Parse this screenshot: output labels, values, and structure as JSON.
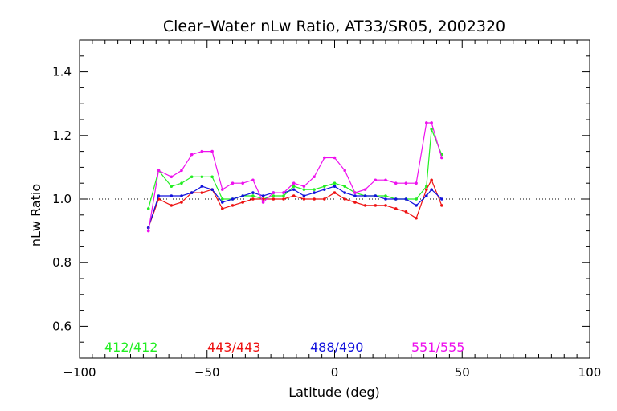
{
  "chart_data": {
    "type": "line",
    "title": "Clear–Water nLw Ratio, AT33/SR05, 2002320",
    "xlabel": "Latitude (deg)",
    "ylabel": "nLw Ratio",
    "xlim": [
      -100,
      100
    ],
    "ylim": [
      0.5,
      1.5
    ],
    "x_ticks": [
      -100,
      -50,
      0,
      50,
      100
    ],
    "x_tick_labels": [
      "−100",
      "−50",
      "0",
      "50",
      "100"
    ],
    "y_ticks": [
      0.6,
      0.8,
      1.0,
      1.2,
      1.4
    ],
    "y_tick_labels": [
      "0.6",
      "0.8",
      "1.0",
      "1.2",
      "1.4"
    ],
    "reference_line": 1.0,
    "grid": false,
    "legend_placement": "bottom inside plot",
    "series": [
      {
        "name": "412/412",
        "color": "#22ee22",
        "x": [
          -73,
          -69,
          -64,
          -60,
          -56,
          -52,
          -48,
          -44,
          -40,
          -36,
          -32,
          -28,
          -24,
          -20,
          -16,
          -12,
          -8,
          -4,
          0,
          4,
          8,
          12,
          16,
          20,
          24,
          28,
          32,
          36,
          38,
          42
        ],
        "y": [
          0.97,
          1.09,
          1.04,
          1.05,
          1.07,
          1.07,
          1.07,
          1.0,
          1.0,
          1.01,
          1.01,
          1.0,
          1.01,
          1.01,
          1.04,
          1.03,
          1.03,
          1.04,
          1.05,
          1.04,
          1.02,
          1.01,
          1.01,
          1.01,
          1.0,
          1.0,
          1.0,
          1.04,
          1.22,
          1.14
        ]
      },
      {
        "name": "443/443",
        "color": "#ee1111",
        "x": [
          -73,
          -69,
          -64,
          -60,
          -56,
          -52,
          -48,
          -44,
          -40,
          -36,
          -32,
          -28,
          -24,
          -20,
          -16,
          -12,
          -8,
          -4,
          0,
          4,
          8,
          12,
          16,
          20,
          24,
          28,
          32,
          36,
          38,
          42
        ],
        "y": [
          0.91,
          1.0,
          0.98,
          0.99,
          1.02,
          1.02,
          1.03,
          0.97,
          0.98,
          0.99,
          1.0,
          1.0,
          1.0,
          1.0,
          1.01,
          1.0,
          1.0,
          1.0,
          1.02,
          1.0,
          0.99,
          0.98,
          0.98,
          0.98,
          0.97,
          0.96,
          0.94,
          1.03,
          1.06,
          0.98
        ]
      },
      {
        "name": "488/490",
        "color": "#1111dd",
        "x": [
          -73,
          -69,
          -64,
          -60,
          -56,
          -52,
          -48,
          -44,
          -40,
          -36,
          -32,
          -28,
          -24,
          -20,
          -16,
          -12,
          -8,
          -4,
          0,
          4,
          8,
          12,
          16,
          20,
          24,
          28,
          32,
          36,
          38,
          42
        ],
        "y": [
          0.91,
          1.01,
          1.01,
          1.01,
          1.02,
          1.04,
          1.03,
          0.99,
          1.0,
          1.01,
          1.02,
          1.01,
          1.02,
          1.02,
          1.03,
          1.01,
          1.02,
          1.03,
          1.04,
          1.02,
          1.01,
          1.01,
          1.01,
          1.0,
          1.0,
          1.0,
          0.98,
          1.01,
          1.03,
          1.0
        ]
      },
      {
        "name": "551/555",
        "color": "#ee11ee",
        "x": [
          -73,
          -69,
          -64,
          -60,
          -56,
          -52,
          -48,
          -44,
          -40,
          -36,
          -32,
          -28,
          -24,
          -20,
          -16,
          -12,
          -8,
          -4,
          0,
          4,
          8,
          12,
          16,
          20,
          24,
          28,
          32,
          36,
          38,
          42
        ],
        "y": [
          0.9,
          1.09,
          1.07,
          1.09,
          1.14,
          1.15,
          1.15,
          1.03,
          1.05,
          1.05,
          1.06,
          0.99,
          1.02,
          1.02,
          1.05,
          1.04,
          1.07,
          1.13,
          1.13,
          1.09,
          1.02,
          1.03,
          1.06,
          1.06,
          1.05,
          1.05,
          1.05,
          1.24,
          1.24,
          1.13
        ]
      }
    ]
  }
}
